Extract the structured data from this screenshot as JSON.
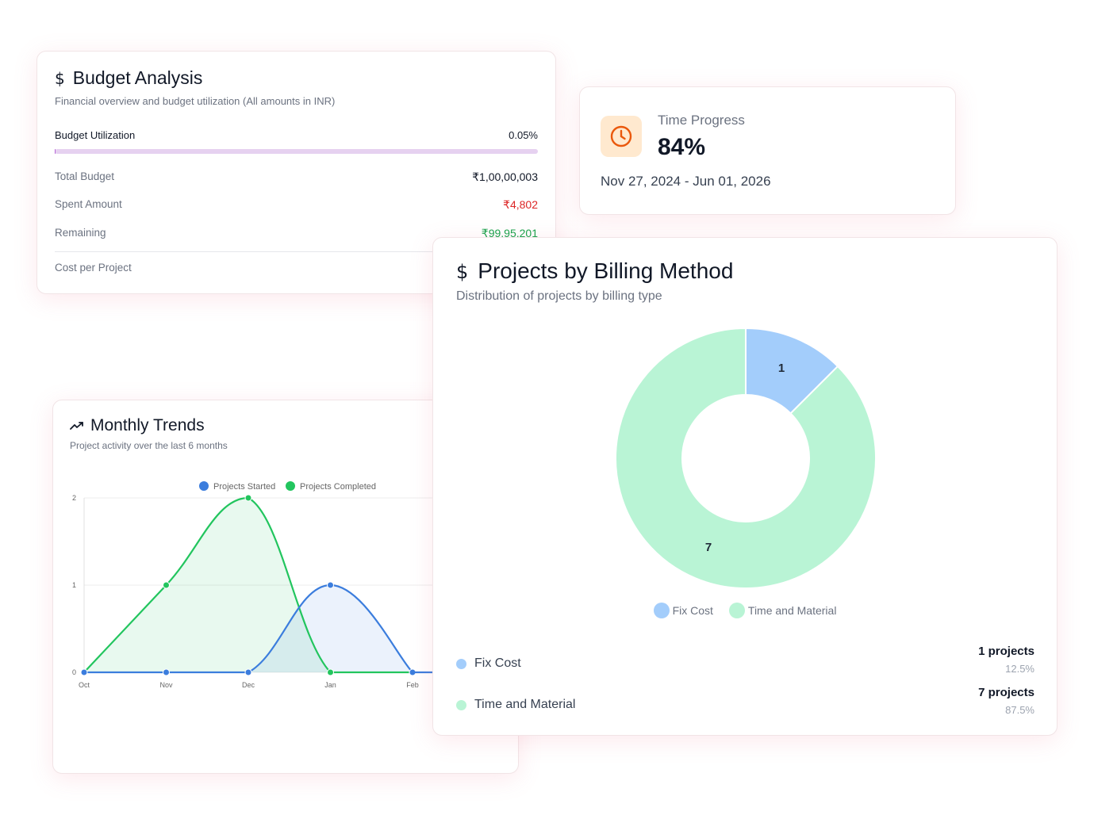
{
  "budget": {
    "title": "Budget Analysis",
    "subtitle": "Financial overview and budget utilization (All amounts in INR)",
    "utilization_label": "Budget Utilization",
    "utilization_value": "0.05%",
    "utilization_fraction": 0.0005,
    "rows": [
      {
        "label": "Total Budget",
        "value": "₹1,00,00,003",
        "color": "#111827"
      },
      {
        "label": "Spent Amount",
        "value": "₹4,802",
        "color": "#dc2626"
      },
      {
        "label": "Remaining",
        "value": "₹99,95,201",
        "color": "#16a34a"
      }
    ],
    "cost_per_project_label": "Cost per Project"
  },
  "time": {
    "label": "Time Progress",
    "value": "84%",
    "dates": "Nov 27, 2024 - Jun 01, 2026",
    "accent": "#ea580c"
  },
  "trends": {
    "title": "Monthly Trends",
    "subtitle": "Project activity over the last 6 months"
  },
  "billing": {
    "title": "Projects by Billing Method",
    "subtitle": "Distribution of projects by billing type",
    "rows": [
      {
        "name": "Fix Cost",
        "count_label": "1 projects",
        "percent": "12.5%",
        "color": "#a3cdfb"
      },
      {
        "name": "Time and Material",
        "count_label": "7 projects",
        "percent": "87.5%",
        "color": "#b9f4d5"
      }
    ]
  },
  "chart_data": [
    {
      "type": "area",
      "categories": [
        "Oct",
        "Nov",
        "Dec",
        "Jan",
        "Feb"
      ],
      "series": [
        {
          "name": "Projects Started",
          "values": [
            0,
            0,
            0,
            1,
            0
          ],
          "color": "#3b7ddd"
        },
        {
          "name": "Projects Completed",
          "values": [
            0,
            1,
            2,
            0,
            0
          ],
          "color": "#22c55e"
        }
      ],
      "ylim": [
        0,
        2
      ],
      "yticks": [
        "0",
        "1",
        "2"
      ],
      "legend": "top",
      "grid": true
    },
    {
      "type": "pie",
      "categories": [
        "Fix Cost",
        "Time and Material"
      ],
      "values": [
        1,
        7
      ],
      "colors": [
        "#a3cdfb",
        "#b9f4d5"
      ],
      "legend": "bottom"
    }
  ]
}
